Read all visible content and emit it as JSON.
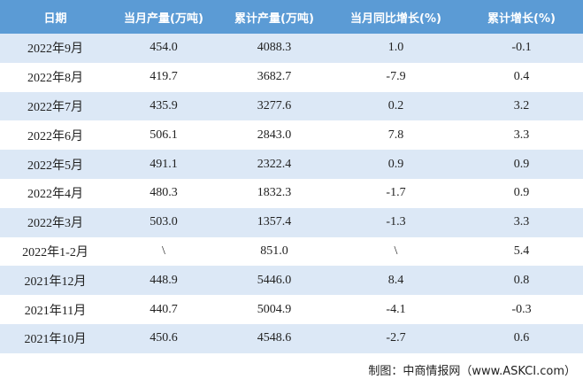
{
  "table": {
    "header": [
      "日期",
      "当月产量(万吨)",
      "累计产量(万吨)",
      "当月同比增长(%)",
      "累计增长(%)"
    ],
    "rows": [
      [
        "2022年9月",
        "454.0",
        "4088.3",
        "1.0",
        "-0.1"
      ],
      [
        "2022年8月",
        "419.7",
        "3682.7",
        "-7.9",
        "0.4"
      ],
      [
        "2022年7月",
        "435.9",
        "3277.6",
        "0.2",
        "3.2"
      ],
      [
        "2022年6月",
        "506.1",
        "2843.0",
        "7.8",
        "3.3"
      ],
      [
        "2022年5月",
        "491.1",
        "2322.4",
        "0.9",
        "0.9"
      ],
      [
        "2022年4月",
        "480.3",
        "1832.3",
        "-1.7",
        "0.9"
      ],
      [
        "2022年3月",
        "503.0",
        "1357.4",
        "-1.3",
        "3.3"
      ],
      [
        "2022年1-2月",
        "\\",
        "851.0",
        "\\",
        "5.4"
      ],
      [
        "2021年12月",
        "448.9",
        "5446.0",
        "8.4",
        "0.8"
      ],
      [
        "2021年11月",
        "440.7",
        "5004.9",
        "-4.1",
        "-0.3"
      ],
      [
        "2021年10月",
        "450.6",
        "4548.6",
        "-2.7",
        "0.6"
      ]
    ]
  },
  "footer": "制图：中商情报网（www.ASKCI.com）"
}
